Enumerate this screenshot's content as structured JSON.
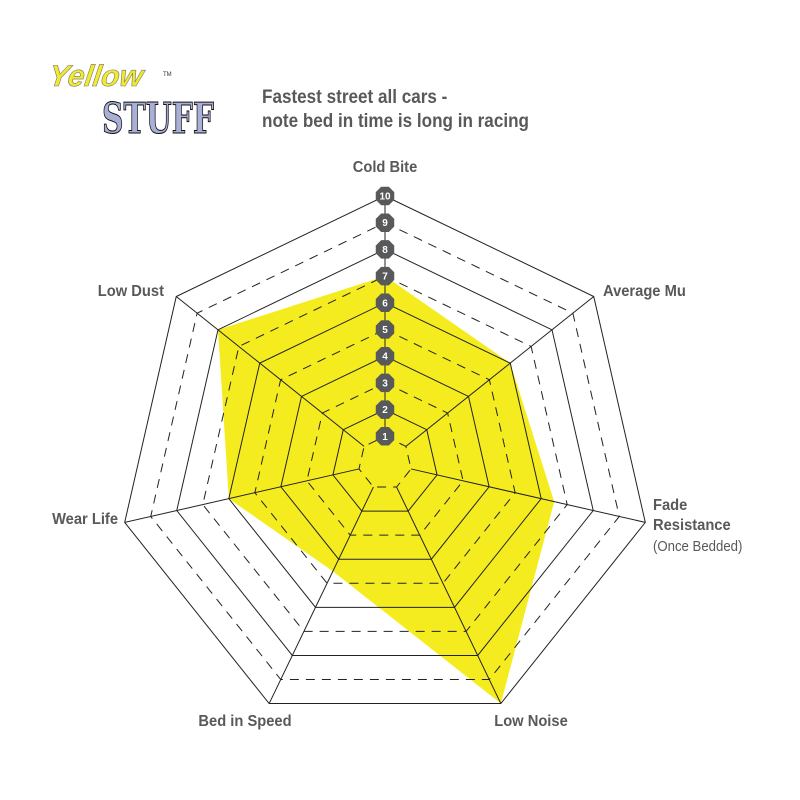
{
  "logo": {
    "line1": "Yellow",
    "line2": "STUFF",
    "tm": "TM",
    "colors": {
      "yellow": "#f2ea2c",
      "blue": "#a9afd6"
    }
  },
  "chart_data": {
    "type": "radar",
    "title": [
      "Fastest street all cars -",
      "note bed in time is long in racing"
    ],
    "axes": [
      {
        "label": "Cold Bite"
      },
      {
        "label": "Average Mu"
      },
      {
        "label": "Fade",
        "label2": "Resistance",
        "sub": "(Once Bedded)"
      },
      {
        "label": "Low Noise"
      },
      {
        "label": "Bed in Speed"
      },
      {
        "label": "Wear Life"
      },
      {
        "label": "Low Dust"
      }
    ],
    "values": [
      7,
      6,
      6.5,
      10,
      4.5,
      6,
      8
    ],
    "range": [
      0,
      10
    ],
    "scale_labels": [
      "1",
      "2",
      "3",
      "4",
      "5",
      "6",
      "7",
      "8",
      "9",
      "10"
    ],
    "grid": "heptagon rings; solid at even levels, dashed at odd levels",
    "colors": {
      "fill": "#f5ec1f",
      "grid": "#222222",
      "badge": "#58595b",
      "text": "#58595b"
    }
  }
}
